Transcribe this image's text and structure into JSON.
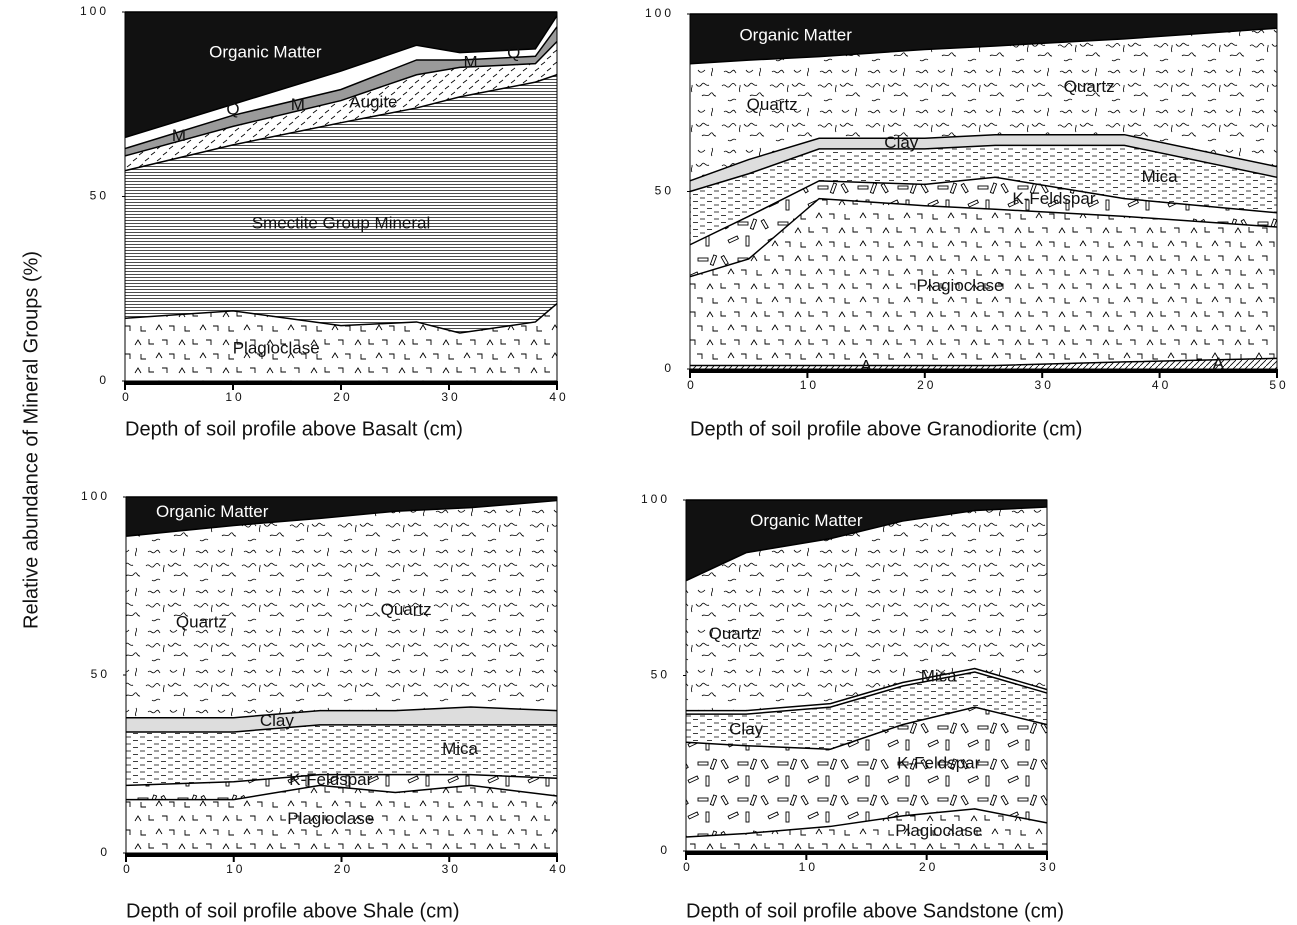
{
  "ylabel": "Relative abundance of Mineral Groups (%)",
  "chart_data": [
    {
      "type": "stacked-area",
      "xlabel": "Depth of soil profile above Basalt (cm)",
      "x": [
        0,
        10,
        20,
        27,
        31,
        38,
        40
      ],
      "xlim": [
        0,
        40
      ],
      "xticks": [
        0,
        10,
        20,
        30,
        40
      ],
      "ylim": [
        0,
        100
      ],
      "yticks": [
        0,
        50,
        100
      ],
      "series": [
        {
          "name": "Plagioclase",
          "pattern": "carets",
          "values": [
            17,
            19,
            15,
            16,
            13,
            16,
            21
          ],
          "label_x": [
            14
          ]
        },
        {
          "name": "Smectite Group Mineral",
          "pattern": "hlines",
          "values": [
            40,
            45,
            55,
            58,
            64,
            65,
            62
          ],
          "label_x": [
            20
          ]
        },
        {
          "name": "Augite",
          "pattern": "slashes",
          "values": [
            4,
            5,
            6,
            9,
            8,
            5,
            9
          ],
          "label_x": [
            23
          ]
        },
        {
          "name": "M",
          "color": "#9a9a9a",
          "values": [
            2,
            3,
            3,
            4,
            2,
            2,
            4
          ],
          "label_x": [
            5,
            16,
            32
          ]
        },
        {
          "name": "Q",
          "color": "#ffffff",
          "values": [
            3,
            3,
            5,
            4,
            2,
            2,
            3
          ],
          "label_x": [
            10,
            36
          ]
        },
        {
          "name": "Organic Matter",
          "color": "#111111",
          "values": [
            34,
            25,
            16,
            9,
            11,
            10,
            1
          ],
          "label_x": [
            13
          ]
        }
      ]
    },
    {
      "type": "stacked-area",
      "xlabel": "Depth of soil profile above Granodiorite (cm)",
      "x": [
        0,
        5,
        11,
        20,
        26,
        37,
        50
      ],
      "xlim": [
        0,
        50
      ],
      "xticks": [
        0,
        10,
        20,
        30,
        40,
        50
      ],
      "ylim": [
        0,
        100
      ],
      "yticks": [
        0,
        50,
        100
      ],
      "series": [
        {
          "name": "A",
          "pattern": "hatch",
          "values": [
            1,
            1,
            1,
            1,
            1,
            2,
            3
          ],
          "label_x": [
            15,
            45
          ]
        },
        {
          "name": "Plagioclase",
          "pattern": "carets",
          "values": [
            25,
            30,
            47,
            45,
            44,
            41,
            37
          ],
          "label_x": [
            23
          ]
        },
        {
          "name": "K-Feldspar",
          "pattern": "bars",
          "values": [
            9,
            12,
            5,
            6,
            9,
            5,
            4
          ],
          "label_x": [
            31
          ]
        },
        {
          "name": "Mica",
          "pattern": "dashes",
          "values": [
            15,
            12,
            9,
            10,
            9,
            15,
            10
          ],
          "label_x": [
            40
          ]
        },
        {
          "name": "Clay",
          "color": "#dddddd",
          "values": [
            3,
            4,
            3,
            3,
            3,
            3,
            3
          ],
          "label_x": [
            18
          ]
        },
        {
          "name": "Quartz",
          "pattern": "squiggle",
          "values": [
            33,
            28,
            23,
            25,
            25,
            27,
            39
          ],
          "label_x": [
            7,
            34
          ]
        },
        {
          "name": "Organic Matter",
          "color": "#111111",
          "values": [
            14,
            13,
            12,
            10,
            9,
            7,
            4
          ],
          "label_x": [
            9
          ]
        }
      ]
    },
    {
      "type": "stacked-area",
      "xlabel": "Depth of soil profile above Shale (cm)",
      "x": [
        0,
        10,
        18,
        25,
        32,
        40
      ],
      "xlim": [
        0,
        40
      ],
      "xticks": [
        0,
        10,
        20,
        30,
        40
      ],
      "ylim": [
        0,
        100
      ],
      "yticks": [
        0,
        50,
        100
      ],
      "series": [
        {
          "name": "Plagioclase",
          "pattern": "carets",
          "values": [
            15,
            15,
            19,
            17,
            19,
            16
          ],
          "label_x": [
            19
          ]
        },
        {
          "name": "K-Feldspar",
          "pattern": "bars",
          "values": [
            4,
            5,
            3,
            5,
            3,
            5
          ],
          "label_x": [
            19
          ]
        },
        {
          "name": "Mica",
          "pattern": "dashes",
          "values": [
            15,
            14,
            14,
            14,
            14,
            15
          ],
          "label_x": [
            31
          ]
        },
        {
          "name": "Clay",
          "color": "#dddddd",
          "values": [
            4,
            4,
            4,
            4,
            5,
            4
          ],
          "label_x": [
            14
          ]
        },
        {
          "name": "Quartz",
          "pattern": "squiggle",
          "values": [
            51,
            54,
            54,
            56,
            56,
            59
          ],
          "label_x": [
            7,
            26
          ]
        },
        {
          "name": "Organic Matter",
          "color": "#111111",
          "values": [
            11,
            8,
            6,
            4,
            3,
            1
          ],
          "label_x": [
            8
          ]
        }
      ]
    },
    {
      "type": "stacked-area",
      "xlabel": "Depth of soil profile above Sandstone (cm)",
      "x": [
        0,
        5,
        12,
        18,
        24,
        30
      ],
      "xlim": [
        0,
        30
      ],
      "xticks": [
        0,
        10,
        20,
        30
      ],
      "ylim": [
        0,
        100
      ],
      "yticks": [
        0,
        50,
        100
      ],
      "series": [
        {
          "name": "Plagioclase",
          "pattern": "carets",
          "values": [
            4,
            5,
            7,
            10,
            12,
            8
          ],
          "label_x": [
            21
          ]
        },
        {
          "name": "K-Feldspar",
          "pattern": "bars",
          "values": [
            27,
            25,
            22,
            26,
            29,
            28
          ],
          "label_x": [
            21
          ]
        },
        {
          "name": "Clay",
          "pattern": "dashes",
          "values": [
            8,
            9,
            12,
            11,
            10,
            9
          ],
          "label_x": [
            5
          ]
        },
        {
          "name": "Mica",
          "color": "#ffffff",
          "values": [
            1,
            1,
            1,
            1,
            1,
            1
          ],
          "label_x": [
            21
          ]
        },
        {
          "name": "Quartz",
          "pattern": "squiggle",
          "values": [
            37,
            45,
            47,
            46,
            45,
            52
          ],
          "label_x": [
            4
          ]
        },
        {
          "name": "Organic Matter",
          "color": "#111111",
          "values": [
            23,
            15,
            11,
            6,
            3,
            2
          ],
          "label_x": [
            10
          ]
        }
      ]
    }
  ]
}
